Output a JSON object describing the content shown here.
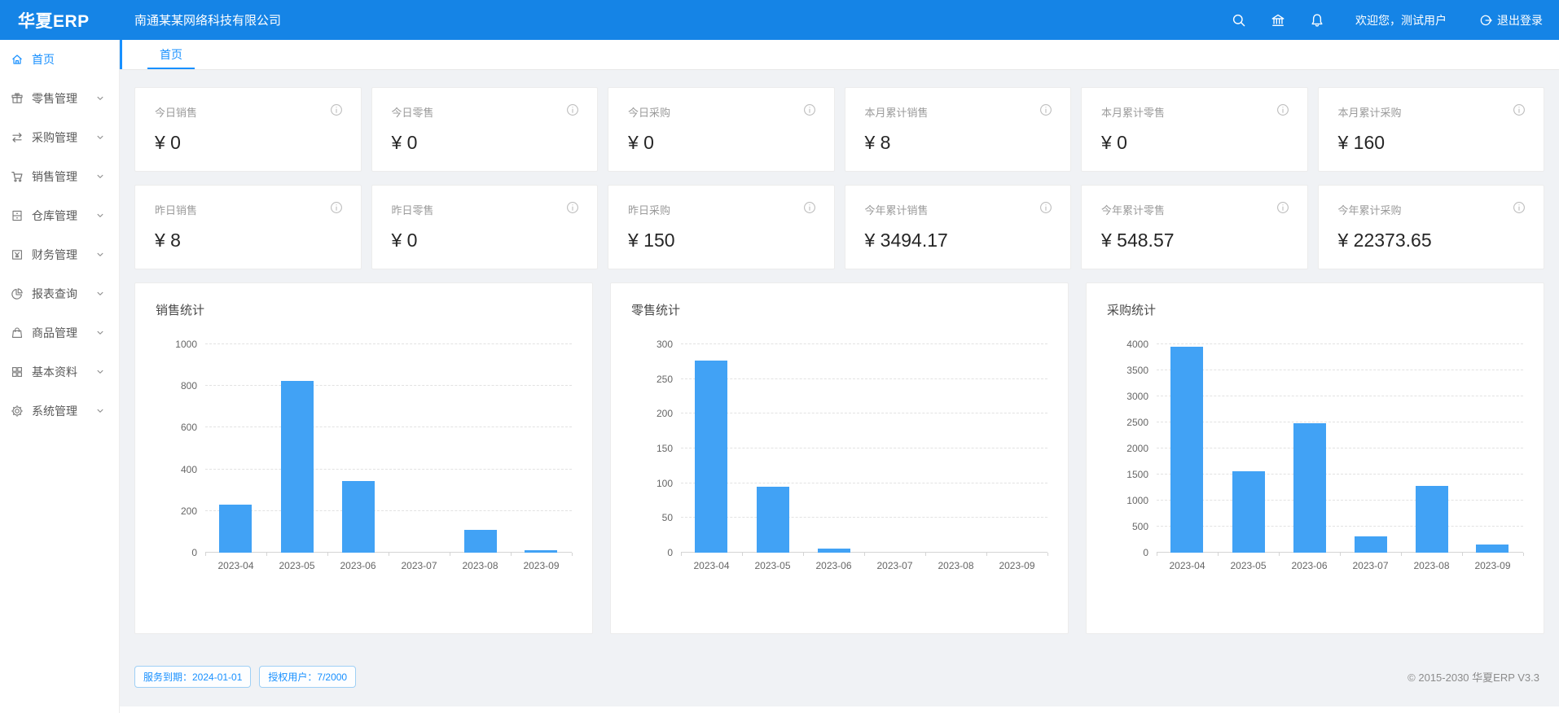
{
  "header": {
    "logo_bold": "华夏",
    "logo_rest": "ERP",
    "company": "南通某某网络科技有限公司",
    "welcome": "欢迎您，测试用户",
    "logout": "退出登录"
  },
  "sidebar": {
    "items": [
      {
        "label": "首页",
        "icon": "home-icon",
        "active": true,
        "chevron": false
      },
      {
        "label": "零售管理",
        "icon": "gift-icon",
        "active": false,
        "chevron": true
      },
      {
        "label": "采购管理",
        "icon": "swap-icon",
        "active": false,
        "chevron": true
      },
      {
        "label": "销售管理",
        "icon": "cart-icon",
        "active": false,
        "chevron": true
      },
      {
        "label": "仓库管理",
        "icon": "warehouse-icon",
        "active": false,
        "chevron": true
      },
      {
        "label": "财务管理",
        "icon": "money-icon",
        "active": false,
        "chevron": true
      },
      {
        "label": "报表查询",
        "icon": "pie-chart-icon",
        "active": false,
        "chevron": true
      },
      {
        "label": "商品管理",
        "icon": "bag-icon",
        "active": false,
        "chevron": true
      },
      {
        "label": "基本资料",
        "icon": "grid-icon",
        "active": false,
        "chevron": true
      },
      {
        "label": "系统管理",
        "icon": "gear-icon",
        "active": false,
        "chevron": true
      }
    ]
  },
  "tabs": [
    {
      "label": "首页",
      "active": true
    }
  ],
  "stat_cards": {
    "row1": [
      {
        "label": "今日销售",
        "value": "¥ 0"
      },
      {
        "label": "今日零售",
        "value": "¥ 0"
      },
      {
        "label": "今日采购",
        "value": "¥ 0"
      },
      {
        "label": "本月累计销售",
        "value": "¥ 8"
      },
      {
        "label": "本月累计零售",
        "value": "¥ 0"
      },
      {
        "label": "本月累计采购",
        "value": "¥ 160"
      }
    ],
    "row2": [
      {
        "label": "昨日销售",
        "value": "¥ 8"
      },
      {
        "label": "昨日零售",
        "value": "¥ 0"
      },
      {
        "label": "昨日采购",
        "value": "¥ 150"
      },
      {
        "label": "今年累计销售",
        "value": "¥ 3494.17"
      },
      {
        "label": "今年累计零售",
        "value": "¥ 548.57"
      },
      {
        "label": "今年累计采购",
        "value": "¥ 22373.65"
      }
    ]
  },
  "chart_data": [
    {
      "type": "bar",
      "title": "销售统计",
      "categories": [
        "2023-04",
        "2023-05",
        "2023-06",
        "2023-07",
        "2023-08",
        "2023-09"
      ],
      "values": [
        230,
        825,
        345,
        0,
        110,
        10
      ],
      "ylim": [
        0,
        1000
      ],
      "ytick_step": 200,
      "grid": "dashed",
      "bar_color": "#41a2f5"
    },
    {
      "type": "bar",
      "title": "零售统计",
      "categories": [
        "2023-04",
        "2023-05",
        "2023-06",
        "2023-07",
        "2023-08",
        "2023-09"
      ],
      "values": [
        277,
        95,
        6,
        0,
        0,
        0
      ],
      "ylim": [
        0,
        300
      ],
      "ytick_step": 50,
      "grid": "dashed",
      "bar_color": "#41a2f5"
    },
    {
      "type": "bar",
      "title": "采购统计",
      "categories": [
        "2023-04",
        "2023-05",
        "2023-06",
        "2023-07",
        "2023-08",
        "2023-09"
      ],
      "values": [
        3950,
        1570,
        2480,
        320,
        1280,
        150
      ],
      "ylim": [
        0,
        4000
      ],
      "ytick_step": 500,
      "grid": "dashed",
      "bar_color": "#41a2f5"
    }
  ],
  "footer": {
    "badges": [
      "服务到期：2024-01-01",
      "授权用户：7/2000"
    ],
    "copyright": "© 2015-2030 华夏ERP V3.3"
  },
  "colors": {
    "header_bg": "#1584e6",
    "primary": "#1890ff",
    "bar": "#41a2f5",
    "content_bg": "#f0f2f5"
  }
}
